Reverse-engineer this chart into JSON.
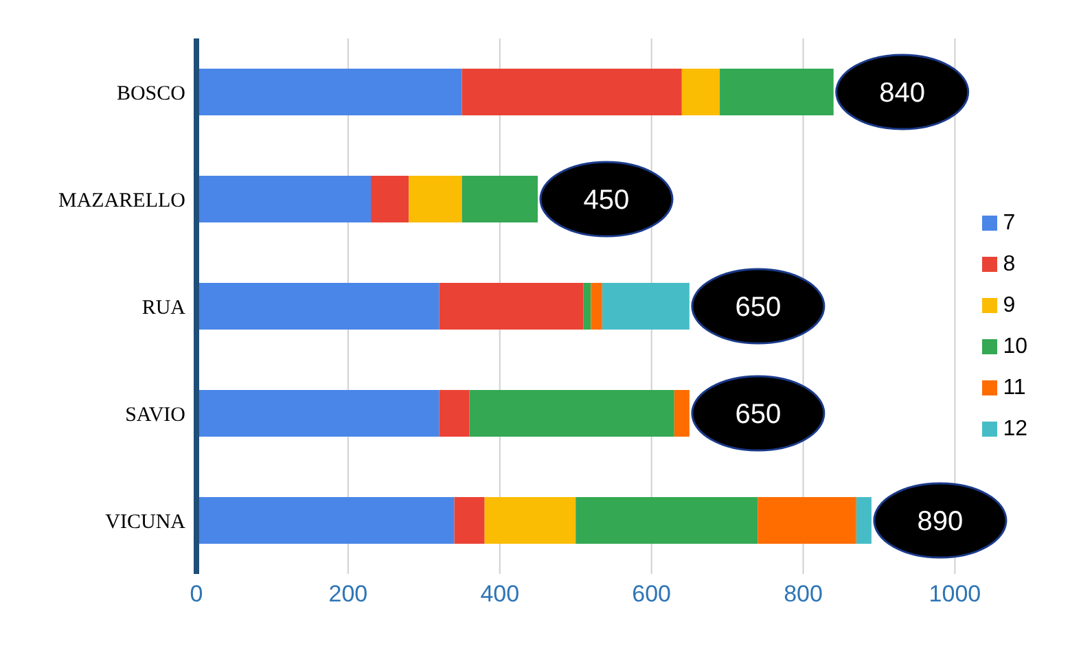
{
  "chart_data": {
    "type": "bar",
    "orientation": "horizontal",
    "stacked": true,
    "categories": [
      "BOSCO",
      "MAZARELLO",
      "RUA",
      "SAVIO",
      "VICUNA"
    ],
    "series": [
      {
        "name": "7",
        "color": "#4a86e8",
        "values": [
          350,
          230,
          320,
          320,
          340
        ]
      },
      {
        "name": "8",
        "color": "#ea4335",
        "values": [
          290,
          50,
          190,
          40,
          40
        ]
      },
      {
        "name": "9",
        "color": "#fbbc04",
        "values": [
          50,
          70,
          null,
          null,
          120
        ]
      },
      {
        "name": "10",
        "color": "#34a853",
        "values": [
          150,
          100,
          10,
          270,
          240
        ]
      },
      {
        "name": "11",
        "color": "#ff6d01",
        "values": [
          null,
          null,
          15,
          20,
          130
        ]
      },
      {
        "name": "12",
        "color": "#46bdc6",
        "values": [
          null,
          null,
          115,
          null,
          20
        ]
      }
    ],
    "totals": [
      "840",
      "450",
      "650",
      "650",
      "890"
    ],
    "xlim": [
      0,
      1000
    ],
    "xticks": [
      0,
      200,
      400,
      600,
      800,
      1000
    ],
    "grid": "x",
    "legend": "right"
  }
}
